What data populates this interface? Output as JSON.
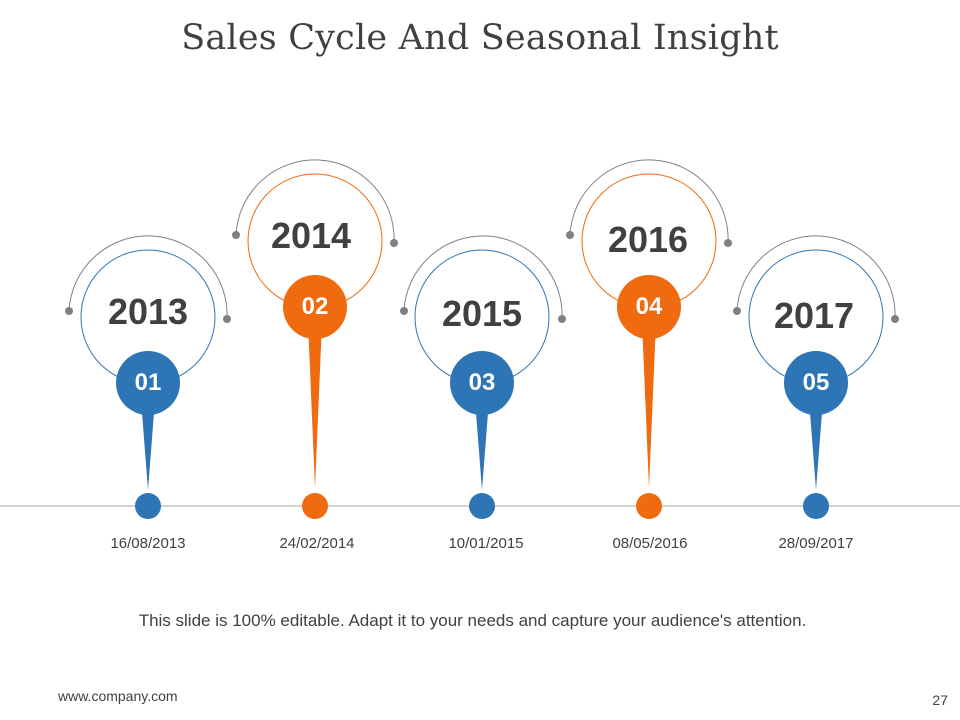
{
  "slide": {
    "title": "Sales Cycle And Seasonal Insight",
    "caption": "This slide is 100% editable. Adapt it to your needs and capture your audience's attention.",
    "footer_url": "www.company.com",
    "page_number": "27"
  },
  "colors": {
    "blue": "#2E75B6",
    "orange": "#F06A0F",
    "gray": "#808080",
    "line": "#A6A6A6",
    "text": "#404040"
  },
  "milestones": [
    {
      "number": "01",
      "year": "2013",
      "date": "16/08/2013",
      "color": "blue"
    },
    {
      "number": "02",
      "year": "2014",
      "date": "24/02/2014",
      "color": "orange"
    },
    {
      "number": "03",
      "year": "2015",
      "date": "10/01/2015",
      "color": "blue"
    },
    {
      "number": "04",
      "year": "2016",
      "date": "08/05/2016",
      "color": "orange"
    },
    {
      "number": "05",
      "year": "2017",
      "date": "28/09/2017",
      "color": "blue"
    }
  ]
}
